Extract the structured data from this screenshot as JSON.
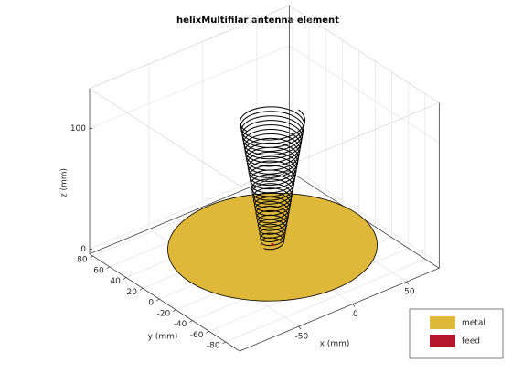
{
  "chart_data": {
    "type": "antenna3d",
    "title": "helixMultifilar antenna element",
    "xlabel": "x (mm)",
    "ylabel": "y (mm)",
    "zlabel": "z (mm)",
    "xlim": [
      -105,
      80
    ],
    "ylim": [
      -97,
      84
    ],
    "zlim": [
      -4,
      133
    ],
    "xticks": [
      -50,
      0,
      50
    ],
    "yticks": [
      -80,
      -60,
      -40,
      -20,
      0,
      20,
      40,
      60,
      80
    ],
    "zticks": [
      0,
      100
    ],
    "grid": true,
    "legend_position": "lower right",
    "legend": [
      {
        "name": "metal",
        "color": "#dfb83a"
      },
      {
        "name": "feed",
        "color": "#b5162b"
      }
    ]
  }
}
